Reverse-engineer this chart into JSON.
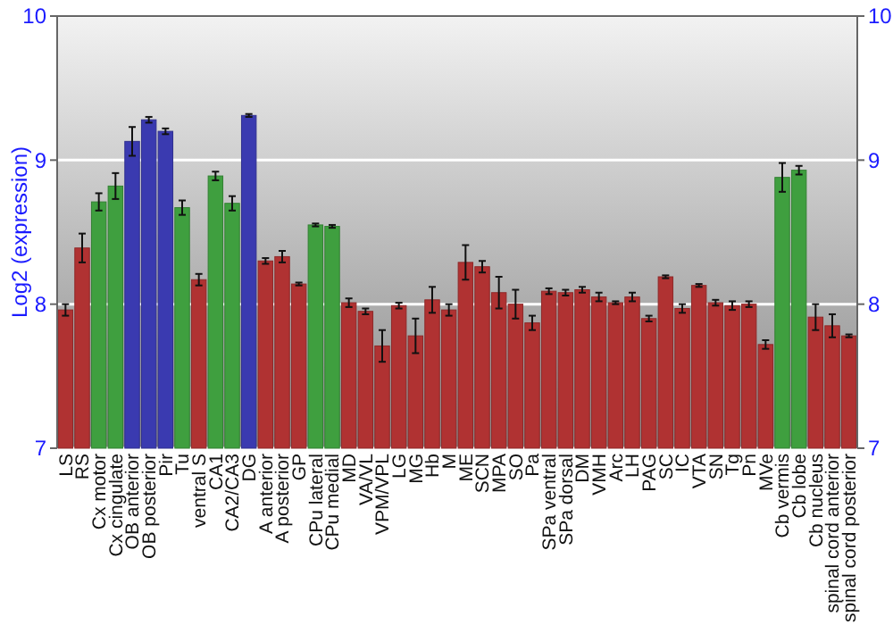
{
  "chart_data": {
    "type": "bar",
    "ylabel": "Log2 (expression)",
    "categories": [
      "LS",
      "RS",
      "Cx motor",
      "Cx cingulate",
      "OB anterior",
      "OB posterior",
      "Pir",
      "Tu",
      "ventral S",
      "CA1",
      "CA2/CA3",
      "DG",
      "A anterior",
      "A posterior",
      "GP",
      "CPu lateral",
      "CPu medial",
      "MD",
      "VA/VL",
      "VPM/VPL",
      "LG",
      "MG",
      "Hb",
      "M",
      "ME",
      "SCN",
      "MPA",
      "SO",
      "Pa",
      "SPa ventral",
      "SPa dorsal",
      "DM",
      "VMH",
      "Arc",
      "LH",
      "PAG",
      "SC",
      "IC",
      "VTA",
      "SN",
      "Tg",
      "Pn",
      "MVe",
      "Cb vermis",
      "Cb lobe",
      "Cb nucleus",
      "spinal cord anterior",
      "spinal cord posterior"
    ],
    "values": [
      7.96,
      8.39,
      8.71,
      8.82,
      9.13,
      9.28,
      9.2,
      8.67,
      8.17,
      8.89,
      8.7,
      9.31,
      8.3,
      8.33,
      8.14,
      8.55,
      8.54,
      8.01,
      7.95,
      7.71,
      7.99,
      7.78,
      8.03,
      7.96,
      8.29,
      8.26,
      8.08,
      8.0,
      7.87,
      8.09,
      8.08,
      8.1,
      8.05,
      8.01,
      8.05,
      7.9,
      8.19,
      7.97,
      8.13,
      8.01,
      7.99,
      8.0,
      7.72,
      8.88,
      8.93,
      7.91,
      7.85,
      7.78
    ],
    "errors": [
      0.04,
      0.1,
      0.06,
      0.09,
      0.1,
      0.02,
      0.02,
      0.05,
      0.04,
      0.03,
      0.05,
      0.01,
      0.02,
      0.04,
      0.01,
      0.01,
      0.01,
      0.03,
      0.02,
      0.11,
      0.02,
      0.12,
      0.09,
      0.04,
      0.12,
      0.04,
      0.11,
      0.1,
      0.05,
      0.02,
      0.02,
      0.02,
      0.03,
      0.01,
      0.03,
      0.02,
      0.01,
      0.03,
      0.01,
      0.02,
      0.03,
      0.02,
      0.03,
      0.1,
      0.03,
      0.09,
      0.08,
      0.01
    ],
    "colors": [
      "#b03232",
      "#b03232",
      "#3f9f3f",
      "#3f9f3f",
      "#3a3ab0",
      "#3a3ab0",
      "#3a3ab0",
      "#3f9f3f",
      "#b03232",
      "#3f9f3f",
      "#3f9f3f",
      "#3a3ab0",
      "#b03232",
      "#b03232",
      "#b03232",
      "#3f9f3f",
      "#3f9f3f",
      "#b03232",
      "#b03232",
      "#b03232",
      "#b03232",
      "#b03232",
      "#b03232",
      "#b03232",
      "#b03232",
      "#b03232",
      "#b03232",
      "#b03232",
      "#b03232",
      "#b03232",
      "#b03232",
      "#b03232",
      "#b03232",
      "#b03232",
      "#b03232",
      "#b03232",
      "#b03232",
      "#b03232",
      "#b03232",
      "#b03232",
      "#b03232",
      "#b03232",
      "#b03232",
      "#3f9f3f",
      "#3f9f3f",
      "#b03232",
      "#b03232",
      "#b03232"
    ],
    "ylim": [
      7,
      10
    ],
    "yticks": [
      7,
      8,
      9,
      10
    ],
    "y2lim": [
      7,
      10
    ],
    "y2ticks": [
      7,
      8,
      9,
      10
    ],
    "grid": "y"
  }
}
